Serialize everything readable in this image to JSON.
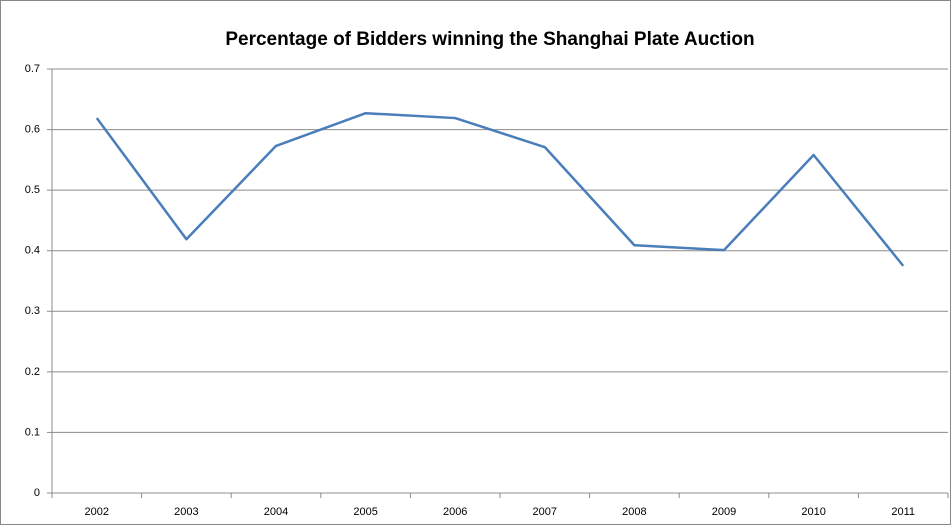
{
  "chart_data": {
    "type": "line",
    "title": "Percentage of Bidders winning the Shanghai Plate Auction",
    "categories": [
      "2002",
      "2003",
      "2004",
      "2005",
      "2006",
      "2007",
      "2008",
      "2009",
      "2010",
      "2011"
    ],
    "series": [
      {
        "name": "Percentage",
        "color": "#4a7ebb",
        "values": [
          0.619,
          0.419,
          0.573,
          0.627,
          0.619,
          0.571,
          0.409,
          0.401,
          0.558,
          0.375
        ]
      }
    ],
    "ylim": [
      0,
      0.7
    ],
    "yticks": [
      0,
      0.1,
      0.2,
      0.3,
      0.4,
      0.5,
      0.6,
      0.7
    ],
    "grid": true,
    "legend": false
  }
}
